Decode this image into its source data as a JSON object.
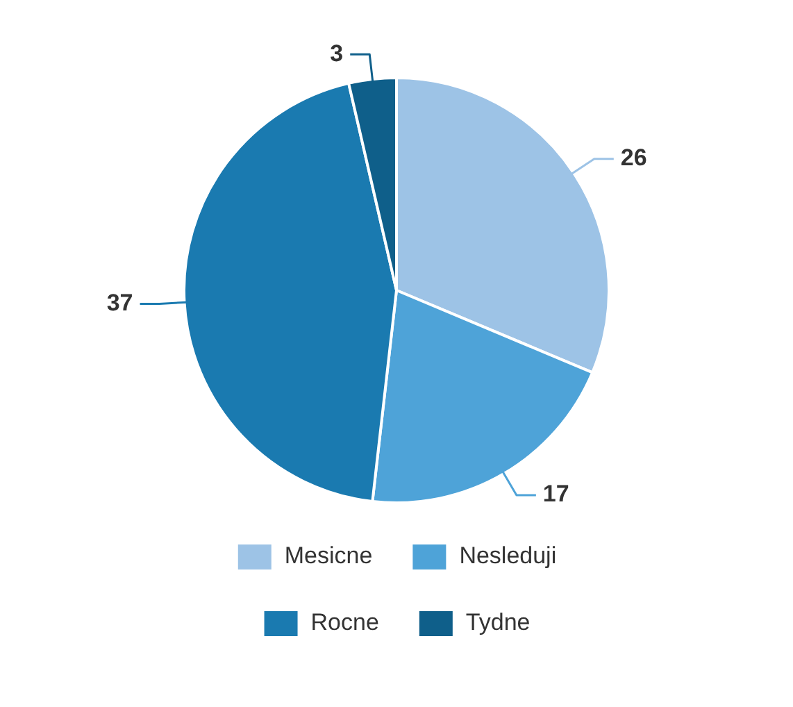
{
  "chart_data": {
    "type": "pie",
    "categories": [
      "Mesicne",
      "Nesleduji",
      "Rocne",
      "Tydne"
    ],
    "values": [
      26,
      17,
      37,
      3
    ],
    "colors": [
      "#9dc3e6",
      "#4ea3d8",
      "#1a7ab0",
      "#0f5f8a"
    ],
    "data_labels": true,
    "legend": "bottom"
  }
}
